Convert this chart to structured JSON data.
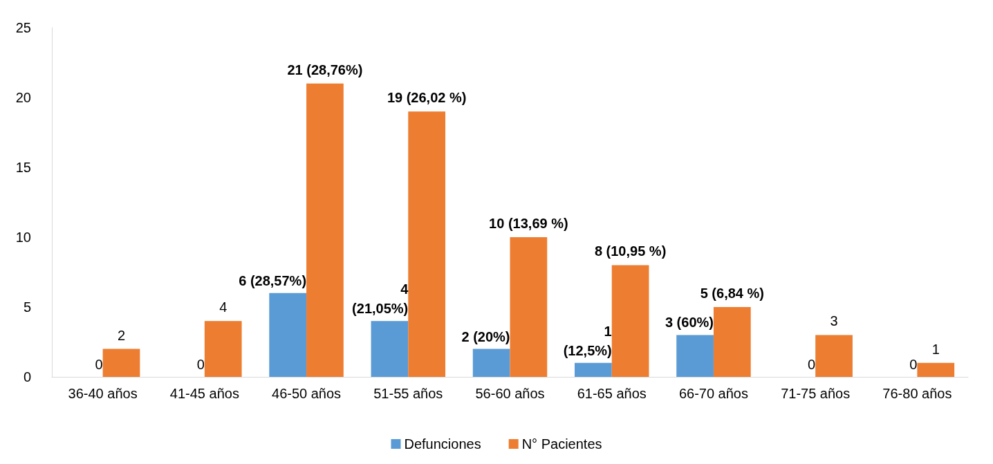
{
  "chart_data": {
    "type": "bar",
    "categories": [
      "36-40 años",
      "41-45 años",
      "46-50 años",
      "51-55 años",
      "56-60 años",
      "61-65 años",
      "66-70 años",
      "71-75 años",
      "76-80 años"
    ],
    "series": [
      {
        "name": "Defunciones",
        "color": "#5b9bd5",
        "values": [
          0,
          0,
          6,
          4,
          2,
          1,
          3,
          0,
          0
        ],
        "value_labels": [
          "0",
          "0",
          "6 (28,57%)",
          "4\n(21,05%)",
          "2 (20%)",
          "1\n(12,5%)",
          "3 (60%)",
          "0",
          "0"
        ]
      },
      {
        "name": "N° Pacientes",
        "color": "#ed7d31",
        "values": [
          2,
          4,
          21,
          19,
          10,
          8,
          5,
          3,
          1
        ],
        "value_labels": [
          "2",
          "4",
          "21 (28,76%)",
          "19 (26,02 %)",
          "10 (13,69 %)",
          "8 (10,95 %)",
          "5 (6,84 %)",
          "3",
          "1"
        ]
      }
    ],
    "ylim": [
      0,
      25
    ],
    "yticks": [
      0,
      5,
      10,
      15,
      20,
      25
    ],
    "grid": false,
    "legend": "bottom"
  }
}
